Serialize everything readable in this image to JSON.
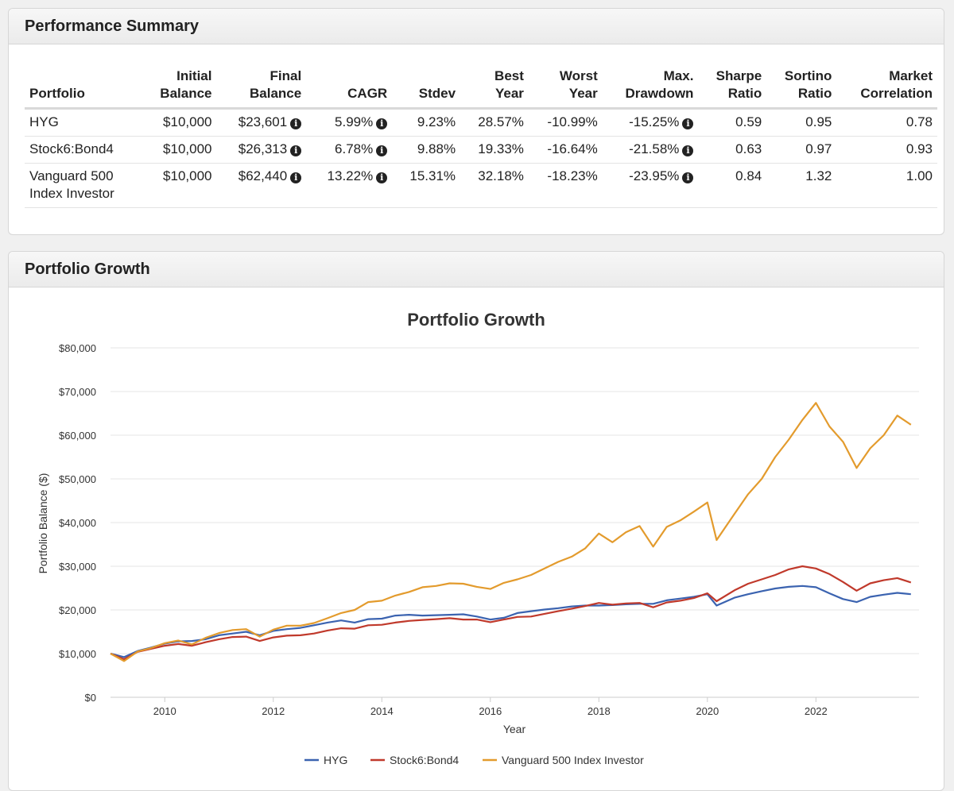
{
  "summary": {
    "title": "Performance Summary",
    "headers": [
      {
        "line1": "",
        "line2": "Portfolio"
      },
      {
        "line1": "Initial",
        "line2": "Balance"
      },
      {
        "line1": "Final",
        "line2": "Balance"
      },
      {
        "line1": "",
        "line2": "CAGR"
      },
      {
        "line1": "",
        "line2": "Stdev"
      },
      {
        "line1": "Best",
        "line2": "Year"
      },
      {
        "line1": "Worst",
        "line2": "Year"
      },
      {
        "line1": "Max.",
        "line2": "Drawdown"
      },
      {
        "line1": "Sharpe",
        "line2": "Ratio"
      },
      {
        "line1": "Sortino",
        "line2": "Ratio"
      },
      {
        "line1": "Market",
        "line2": "Correlation"
      }
    ],
    "rows": [
      {
        "portfolio_line1": "HYG",
        "portfolio_line2": "",
        "initial": "$10,000",
        "final": "$23,601",
        "cagr": "5.99%",
        "stdev": "9.23%",
        "best": "28.57%",
        "worst": "-10.99%",
        "drawdown": "-15.25%",
        "sharpe": "0.59",
        "sortino": "0.95",
        "correlation": "0.78"
      },
      {
        "portfolio_line1": "Stock6:Bond4",
        "portfolio_line2": "",
        "initial": "$10,000",
        "final": "$26,313",
        "cagr": "6.78%",
        "stdev": "9.88%",
        "best": "19.33%",
        "worst": "-16.64%",
        "drawdown": "-21.58%",
        "sharpe": "0.63",
        "sortino": "0.97",
        "correlation": "0.93"
      },
      {
        "portfolio_line1": "Vanguard 500",
        "portfolio_line2": "Index Investor",
        "initial": "$10,000",
        "final": "$62,440",
        "cagr": "13.22%",
        "stdev": "15.31%",
        "best": "32.18%",
        "worst": "-18.23%",
        "drawdown": "-23.95%",
        "sharpe": "0.84",
        "sortino": "1.32",
        "correlation": "1.00"
      }
    ],
    "info_glyph": "i"
  },
  "growth": {
    "title": "Portfolio Growth"
  },
  "chart_data": {
    "type": "line",
    "title": "Portfolio Growth",
    "xlabel": "Year",
    "ylabel": "Portfolio Balance ($)",
    "xlim": [
      2009.0,
      2023.9
    ],
    "ylim": [
      0,
      80000
    ],
    "x_ticks": [
      2010,
      2012,
      2014,
      2016,
      2018,
      2020,
      2022
    ],
    "y_ticks": [
      0,
      10000,
      20000,
      30000,
      40000,
      50000,
      60000,
      70000,
      80000
    ],
    "y_tick_labels": [
      "$0",
      "$10,000",
      "$20,000",
      "$30,000",
      "$40,000",
      "$50,000",
      "$60,000",
      "$70,000",
      "$80,000"
    ],
    "grid": true,
    "legend_position": "bottom",
    "series": [
      {
        "name": "HYG",
        "color": "#3b63b0",
        "points": [
          [
            2009.0,
            10000
          ],
          [
            2009.25,
            9200
          ],
          [
            2009.5,
            10600
          ],
          [
            2009.75,
            11400
          ],
          [
            2010.0,
            12300
          ],
          [
            2010.25,
            12800
          ],
          [
            2010.5,
            12900
          ],
          [
            2010.75,
            13300
          ],
          [
            2011.0,
            14200
          ],
          [
            2011.25,
            14600
          ],
          [
            2011.5,
            15000
          ],
          [
            2011.75,
            14200
          ],
          [
            2012.0,
            15200
          ],
          [
            2012.25,
            15600
          ],
          [
            2012.5,
            15900
          ],
          [
            2012.75,
            16500
          ],
          [
            2013.0,
            17100
          ],
          [
            2013.25,
            17600
          ],
          [
            2013.5,
            17100
          ],
          [
            2013.75,
            17900
          ],
          [
            2014.0,
            18000
          ],
          [
            2014.25,
            18700
          ],
          [
            2014.5,
            18900
          ],
          [
            2014.75,
            18700
          ],
          [
            2015.0,
            18800
          ],
          [
            2015.25,
            18900
          ],
          [
            2015.5,
            19000
          ],
          [
            2015.75,
            18500
          ],
          [
            2016.0,
            17800
          ],
          [
            2016.25,
            18200
          ],
          [
            2016.5,
            19300
          ],
          [
            2016.75,
            19700
          ],
          [
            2017.0,
            20100
          ],
          [
            2017.25,
            20400
          ],
          [
            2017.5,
            20800
          ],
          [
            2017.75,
            21000
          ],
          [
            2018.0,
            21000
          ],
          [
            2018.25,
            21100
          ],
          [
            2018.5,
            21300
          ],
          [
            2018.75,
            21400
          ],
          [
            2019.0,
            21400
          ],
          [
            2019.25,
            22200
          ],
          [
            2019.5,
            22600
          ],
          [
            2019.75,
            23000
          ],
          [
            2020.0,
            23600
          ],
          [
            2020.17,
            21000
          ],
          [
            2020.5,
            22800
          ],
          [
            2020.75,
            23600
          ],
          [
            2021.0,
            24300
          ],
          [
            2021.25,
            24900
          ],
          [
            2021.5,
            25300
          ],
          [
            2021.75,
            25500
          ],
          [
            2022.0,
            25200
          ],
          [
            2022.25,
            23800
          ],
          [
            2022.5,
            22500
          ],
          [
            2022.75,
            21800
          ],
          [
            2023.0,
            23000
          ],
          [
            2023.25,
            23500
          ],
          [
            2023.5,
            23900
          ],
          [
            2023.75,
            23600
          ]
        ]
      },
      {
        "name": "Stock6:Bond4",
        "color": "#c0392b",
        "points": [
          [
            2009.0,
            10000
          ],
          [
            2009.25,
            8700
          ],
          [
            2009.5,
            10400
          ],
          [
            2009.75,
            11100
          ],
          [
            2010.0,
            11800
          ],
          [
            2010.25,
            12200
          ],
          [
            2010.5,
            11800
          ],
          [
            2010.75,
            12600
          ],
          [
            2011.0,
            13300
          ],
          [
            2011.25,
            13800
          ],
          [
            2011.5,
            13900
          ],
          [
            2011.75,
            12900
          ],
          [
            2012.0,
            13700
          ],
          [
            2012.25,
            14100
          ],
          [
            2012.5,
            14200
          ],
          [
            2012.75,
            14600
          ],
          [
            2013.0,
            15300
          ],
          [
            2013.25,
            15800
          ],
          [
            2013.5,
            15700
          ],
          [
            2013.75,
            16500
          ],
          [
            2014.0,
            16600
          ],
          [
            2014.25,
            17100
          ],
          [
            2014.5,
            17500
          ],
          [
            2014.75,
            17700
          ],
          [
            2015.0,
            17900
          ],
          [
            2015.25,
            18100
          ],
          [
            2015.5,
            17800
          ],
          [
            2015.75,
            17800
          ],
          [
            2016.0,
            17200
          ],
          [
            2016.25,
            17800
          ],
          [
            2016.5,
            18400
          ],
          [
            2016.75,
            18500
          ],
          [
            2017.0,
            19100
          ],
          [
            2017.25,
            19700
          ],
          [
            2017.5,
            20300
          ],
          [
            2017.75,
            20900
          ],
          [
            2018.0,
            21600
          ],
          [
            2018.25,
            21200
          ],
          [
            2018.5,
            21500
          ],
          [
            2018.75,
            21600
          ],
          [
            2019.0,
            20600
          ],
          [
            2019.25,
            21700
          ],
          [
            2019.5,
            22100
          ],
          [
            2019.75,
            22700
          ],
          [
            2020.0,
            23800
          ],
          [
            2020.17,
            22000
          ],
          [
            2020.5,
            24500
          ],
          [
            2020.75,
            26000
          ],
          [
            2021.0,
            27000
          ],
          [
            2021.25,
            28000
          ],
          [
            2021.5,
            29300
          ],
          [
            2021.75,
            30000
          ],
          [
            2022.0,
            29500
          ],
          [
            2022.25,
            28200
          ],
          [
            2022.5,
            26400
          ],
          [
            2022.75,
            24400
          ],
          [
            2023.0,
            26100
          ],
          [
            2023.25,
            26800
          ],
          [
            2023.5,
            27300
          ],
          [
            2023.75,
            26300
          ]
        ]
      },
      {
        "name": "Vanguard 500 Index Investor",
        "color": "#e39b2d",
        "points": [
          [
            2009.0,
            10000
          ],
          [
            2009.25,
            8300
          ],
          [
            2009.5,
            10500
          ],
          [
            2009.75,
            11300
          ],
          [
            2010.0,
            12400
          ],
          [
            2010.25,
            13000
          ],
          [
            2010.5,
            12100
          ],
          [
            2010.75,
            13600
          ],
          [
            2011.0,
            14700
          ],
          [
            2011.25,
            15400
          ],
          [
            2011.5,
            15600
          ],
          [
            2011.75,
            13900
          ],
          [
            2012.0,
            15500
          ],
          [
            2012.25,
            16400
          ],
          [
            2012.5,
            16400
          ],
          [
            2012.75,
            17000
          ],
          [
            2013.0,
            18100
          ],
          [
            2013.25,
            19300
          ],
          [
            2013.5,
            20000
          ],
          [
            2013.75,
            21800
          ],
          [
            2014.0,
            22100
          ],
          [
            2014.25,
            23300
          ],
          [
            2014.5,
            24100
          ],
          [
            2014.75,
            25200
          ],
          [
            2015.0,
            25500
          ],
          [
            2015.25,
            26100
          ],
          [
            2015.5,
            26000
          ],
          [
            2015.75,
            25300
          ],
          [
            2016.0,
            24800
          ],
          [
            2016.25,
            26200
          ],
          [
            2016.5,
            27000
          ],
          [
            2016.75,
            28000
          ],
          [
            2017.0,
            29500
          ],
          [
            2017.25,
            31000
          ],
          [
            2017.5,
            32200
          ],
          [
            2017.75,
            34100
          ],
          [
            2018.0,
            37500
          ],
          [
            2018.25,
            35500
          ],
          [
            2018.5,
            37800
          ],
          [
            2018.75,
            39200
          ],
          [
            2019.0,
            34500
          ],
          [
            2019.25,
            39000
          ],
          [
            2019.5,
            40500
          ],
          [
            2019.75,
            42500
          ],
          [
            2020.0,
            44600
          ],
          [
            2020.17,
            36000
          ],
          [
            2020.5,
            42000
          ],
          [
            2020.75,
            46500
          ],
          [
            2021.0,
            50000
          ],
          [
            2021.25,
            55000
          ],
          [
            2021.5,
            59000
          ],
          [
            2021.75,
            63500
          ],
          [
            2022.0,
            67400
          ],
          [
            2022.25,
            62000
          ],
          [
            2022.5,
            58500
          ],
          [
            2022.75,
            52500
          ],
          [
            2023.0,
            57000
          ],
          [
            2023.25,
            60000
          ],
          [
            2023.5,
            64500
          ],
          [
            2023.75,
            62400
          ]
        ]
      }
    ]
  }
}
